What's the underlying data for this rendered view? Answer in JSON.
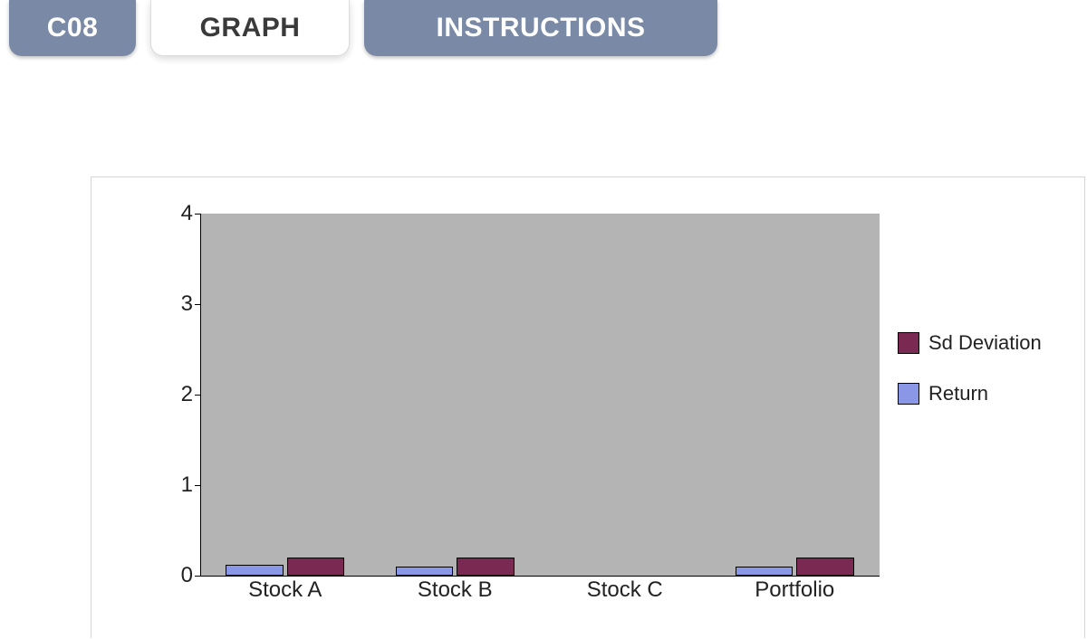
{
  "tabs": {
    "c08": {
      "label": "C08",
      "active": false
    },
    "graph": {
      "label": "GRAPH",
      "active": true
    },
    "instr": {
      "label": "INSTRUCTIONS",
      "active": false
    }
  },
  "chart": {
    "type": "bar",
    "background_color": "#b4b4b4",
    "plot_fill": "background:#b4b4b4",
    "axis_color": "#000000",
    "tick_fontsize": 24,
    "ylim": [
      0,
      4
    ],
    "ytick_step": 1,
    "yticks": [
      {
        "value": 0,
        "label": "0"
      },
      {
        "value": 1,
        "label": "1"
      },
      {
        "value": 2,
        "label": "2"
      },
      {
        "value": 3,
        "label": "3"
      },
      {
        "value": 4,
        "label": "4"
      }
    ],
    "categories": [
      "Stock A",
      "Stock B",
      "Stock C",
      "Portfolio"
    ],
    "series": [
      {
        "name": "Return",
        "color": "#8a97e6",
        "border_color": "#000000",
        "values": [
          0.12,
          0.1,
          0.0,
          0.1
        ]
      },
      {
        "name": "Sd Deviation",
        "color": "#7a2a52",
        "border_color": "#000000",
        "values": [
          0.2,
          0.2,
          0.0,
          0.2
        ]
      }
    ],
    "bar_width": 0.34,
    "group_gap": 0.02,
    "legend": {
      "items": [
        {
          "label": "Sd Deviation",
          "color": "#7a2a52"
        },
        {
          "label": "Return",
          "color": "#8a97e6"
        }
      ],
      "fontsize": 22
    }
  }
}
